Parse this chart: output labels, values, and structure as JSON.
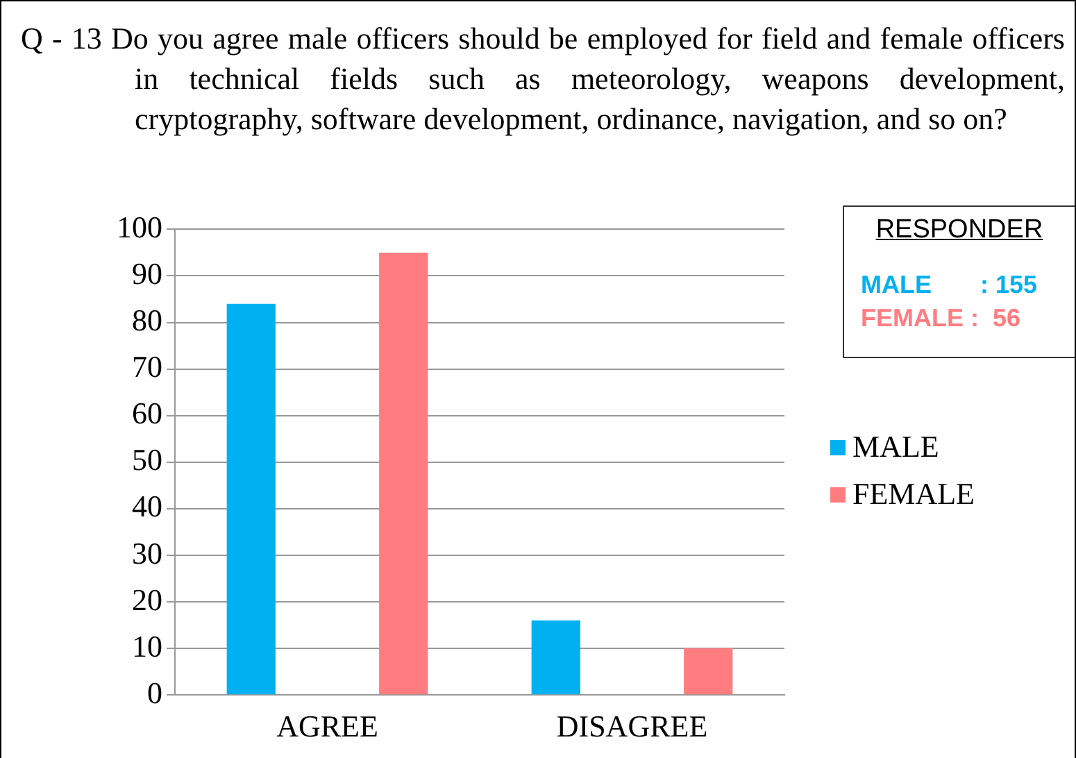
{
  "chart_data": {
    "type": "bar",
    "title": "Q - 13 Do you agree male officers should be employed for field and female officers in technical fields such as meteorology, weapons development, cryptography, software development, ordinance, navigation, and so on?",
    "categories": [
      "AGREE",
      "DISAGREE"
    ],
    "series": [
      {
        "name": "MALE",
        "color": "#00b0f0",
        "values": [
          84,
          16
        ]
      },
      {
        "name": "FEMALE",
        "color": "#ff7c80",
        "values": [
          95,
          10
        ]
      }
    ],
    "ylim": [
      0,
      100
    ],
    "yticks": [
      0,
      10,
      20,
      30,
      40,
      50,
      60,
      70,
      80,
      90,
      100
    ],
    "grid": "y",
    "legend": "right",
    "annotations": [
      "RESPONDER",
      "MALE       : 155",
      "FEMALE :  56"
    ]
  }
}
